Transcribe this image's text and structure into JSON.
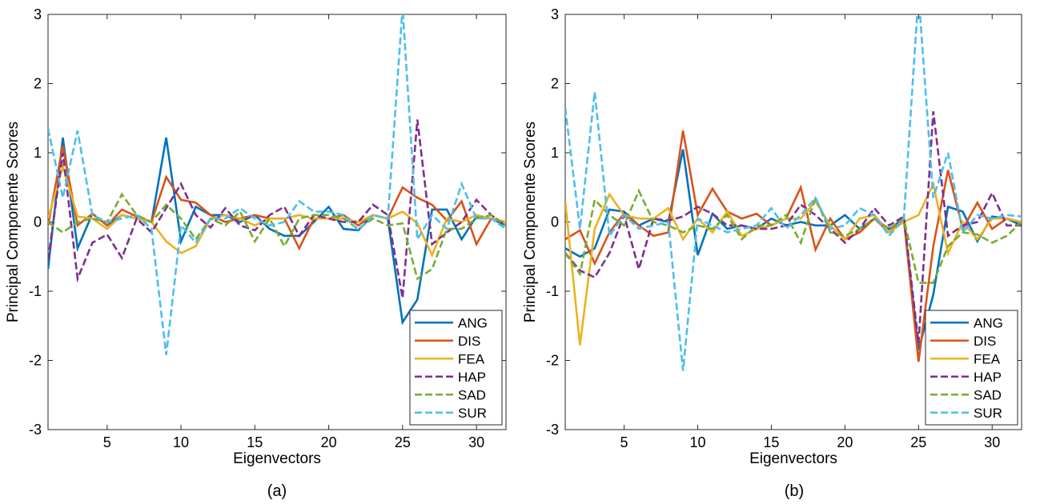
{
  "chart_data": [
    {
      "type": "line",
      "panel_label": "(a)",
      "xlabel": "Eigenvectors",
      "ylabel": "Principal Componente Scores",
      "xlim": [
        1,
        32
      ],
      "ylim": [
        -3,
        3
      ],
      "xticks": [
        5,
        10,
        15,
        20,
        25,
        30
      ],
      "yticks": [
        -3,
        -2,
        -1,
        0,
        1,
        2,
        3
      ],
      "grid": false,
      "legend_position": "bottom-right",
      "x": [
        1,
        2,
        3,
        4,
        5,
        6,
        7,
        8,
        9,
        10,
        11,
        12,
        13,
        14,
        15,
        16,
        17,
        18,
        19,
        20,
        21,
        22,
        23,
        24,
        25,
        26,
        27,
        28,
        29,
        30,
        31,
        32
      ],
      "series": [
        {
          "name": "ANG",
          "color": "#0072BD",
          "dash": "solid",
          "values": [
            -0.68,
            1.22,
            -0.38,
            0.12,
            -0.05,
            0.1,
            0.05,
            0.0,
            1.22,
            -0.28,
            0.22,
            0.1,
            0.1,
            0.0,
            0.1,
            -0.1,
            -0.2,
            -0.2,
            0.0,
            0.22,
            -0.1,
            -0.12,
            0.1,
            0.05,
            -1.45,
            -1.12,
            0.18,
            0.18,
            -0.25,
            0.08,
            0.05,
            -0.05
          ]
        },
        {
          "name": "DIS",
          "color": "#D95319",
          "dash": "solid",
          "values": [
            -0.05,
            1.1,
            -0.05,
            0.12,
            -0.05,
            0.18,
            0.08,
            0.0,
            0.65,
            0.32,
            0.28,
            0.1,
            0.0,
            0.05,
            0.1,
            0.05,
            0.05,
            -0.38,
            0.05,
            0.05,
            0.1,
            -0.05,
            0.1,
            0.05,
            0.5,
            0.35,
            0.25,
            0.02,
            0.3,
            -0.32,
            0.05,
            0.0
          ]
        },
        {
          "name": "FEA",
          "color": "#EDB120",
          "dash": "solid",
          "values": [
            0.05,
            0.8,
            0.08,
            0.05,
            -0.1,
            0.1,
            0.05,
            0.0,
            -0.28,
            -0.45,
            -0.35,
            0.05,
            0.1,
            0.05,
            -0.05,
            0.05,
            0.05,
            0.1,
            0.05,
            0.05,
            0.05,
            0.0,
            0.1,
            0.05,
            0.15,
            -0.02,
            -0.48,
            0.05,
            0.0,
            0.1,
            0.05,
            0.0
          ]
        },
        {
          "name": "HAP",
          "color": "#7E2F8E",
          "dash": "dash",
          "values": [
            -0.55,
            1.0,
            -0.82,
            -0.3,
            -0.18,
            -0.52,
            0.05,
            -0.15,
            0.2,
            0.55,
            0.1,
            -0.08,
            0.2,
            -0.05,
            -0.12,
            0.1,
            0.22,
            -0.2,
            0.1,
            0.05,
            0.0,
            0.0,
            0.25,
            0.1,
            -1.1,
            1.48,
            -0.32,
            -0.15,
            0.0,
            0.32,
            0.1,
            -0.05
          ]
        },
        {
          "name": "SAD",
          "color": "#77AC30",
          "dash": "dash",
          "values": [
            0.0,
            -0.15,
            0.0,
            0.05,
            0.0,
            0.4,
            0.1,
            0.0,
            0.25,
            0.05,
            -0.25,
            0.05,
            -0.05,
            0.15,
            -0.28,
            0.05,
            -0.35,
            0.05,
            0.1,
            0.1,
            0.05,
            -0.1,
            0.05,
            -0.05,
            -0.02,
            -0.82,
            -0.68,
            -0.1,
            -0.1,
            0.05,
            0.1,
            -0.05
          ]
        },
        {
          "name": "SUR",
          "color": "#4DBEEE",
          "dash": "dash",
          "values": [
            1.35,
            0.35,
            1.32,
            0.1,
            0.0,
            0.05,
            0.1,
            -0.1,
            -1.92,
            -0.05,
            -0.3,
            0.05,
            0.05,
            0.2,
            0.05,
            -0.05,
            0.0,
            0.3,
            0.15,
            0.15,
            0.1,
            -0.12,
            0.1,
            0.05,
            3.1,
            -0.25,
            0.1,
            -0.1,
            0.55,
            0.05,
            0.05,
            -0.1
          ]
        }
      ]
    },
    {
      "type": "line",
      "panel_label": "(b)",
      "xlabel": "Eigenvectors",
      "ylabel": "Principal Componente Scores",
      "xlim": [
        1,
        32
      ],
      "ylim": [
        -3,
        3
      ],
      "xticks": [
        5,
        10,
        15,
        20,
        25,
        30
      ],
      "yticks": [
        -3,
        -2,
        -1,
        0,
        1,
        2,
        3
      ],
      "grid": false,
      "legend_position": "bottom-right",
      "x": [
        1,
        2,
        3,
        4,
        5,
        6,
        7,
        8,
        9,
        10,
        11,
        12,
        13,
        14,
        15,
        16,
        17,
        18,
        19,
        20,
        21,
        22,
        23,
        24,
        25,
        26,
        27,
        28,
        29,
        30,
        31,
        32
      ],
      "series": [
        {
          "name": "ANG",
          "color": "#0072BD",
          "dash": "solid",
          "values": [
            -0.38,
            -0.5,
            -0.38,
            0.18,
            0.15,
            -0.05,
            0.05,
            0.0,
            1.05,
            -0.48,
            0.12,
            -0.1,
            -0.05,
            -0.1,
            0.05,
            -0.05,
            0.0,
            -0.05,
            -0.05,
            0.1,
            -0.1,
            0.05,
            -0.1,
            0.05,
            -1.85,
            -1.05,
            0.22,
            0.15,
            -0.28,
            0.08,
            0.05,
            -0.05
          ]
        },
        {
          "name": "DIS",
          "color": "#D95319",
          "dash": "solid",
          "values": [
            -0.25,
            -0.12,
            -0.6,
            -0.15,
            0.12,
            -0.05,
            -0.2,
            -0.15,
            1.32,
            0.1,
            0.48,
            0.15,
            0.05,
            0.12,
            -0.05,
            0.05,
            0.5,
            -0.4,
            0.05,
            -0.25,
            -0.15,
            0.05,
            -0.15,
            0.05,
            -2.02,
            -0.35,
            0.75,
            -0.1,
            0.28,
            -0.1,
            0.05,
            0.0
          ]
        },
        {
          "name": "FEA",
          "color": "#EDB120",
          "dash": "solid",
          "values": [
            0.3,
            -1.78,
            -0.1,
            0.4,
            0.1,
            0.05,
            0.05,
            0.2,
            -0.25,
            0.05,
            -0.15,
            0.15,
            -0.2,
            -0.1,
            -0.05,
            0.05,
            0.05,
            0.3,
            -0.05,
            -0.25,
            0.05,
            0.1,
            -0.15,
            0.0,
            0.1,
            0.55,
            -0.45,
            0.0,
            -0.25,
            0.05,
            0.05,
            0.0
          ]
        },
        {
          "name": "HAP",
          "color": "#7E2F8E",
          "dash": "dash",
          "values": [
            -0.45,
            -0.7,
            -0.8,
            -0.45,
            0.1,
            -0.68,
            0.05,
            0.02,
            0.08,
            0.22,
            0.12,
            -0.05,
            -0.05,
            -0.1,
            -0.1,
            -0.05,
            0.25,
            0.1,
            -0.1,
            -0.3,
            -0.1,
            0.2,
            -0.05,
            0.08,
            -1.75,
            1.6,
            -0.2,
            -0.05,
            0.0,
            0.42,
            -0.05,
            -0.05
          ]
        },
        {
          "name": "SAD",
          "color": "#77AC30",
          "dash": "dash",
          "values": [
            -0.45,
            -0.75,
            0.32,
            0.1,
            -0.05,
            0.45,
            0.0,
            -0.05,
            -0.15,
            -0.05,
            -0.1,
            0.1,
            -0.25,
            -0.05,
            -0.05,
            0.1,
            -0.3,
            0.35,
            -0.15,
            -0.2,
            -0.1,
            0.05,
            -0.1,
            0.05,
            -0.88,
            -0.88,
            -0.35,
            -0.15,
            -0.18,
            -0.3,
            -0.2,
            0.0
          ]
        },
        {
          "name": "SUR",
          "color": "#4DBEEE",
          "dash": "dash",
          "values": [
            1.65,
            -0.1,
            1.88,
            -0.2,
            0.1,
            -0.1,
            -0.05,
            0.0,
            -2.15,
            0.05,
            -0.05,
            -0.15,
            -0.1,
            -0.05,
            0.2,
            -0.1,
            0.1,
            0.35,
            -0.1,
            -0.05,
            0.2,
            0.1,
            -0.2,
            0.05,
            3.3,
            0.35,
            1.0,
            -0.15,
            0.1,
            0.05,
            0.1,
            0.08
          ]
        }
      ]
    }
  ]
}
